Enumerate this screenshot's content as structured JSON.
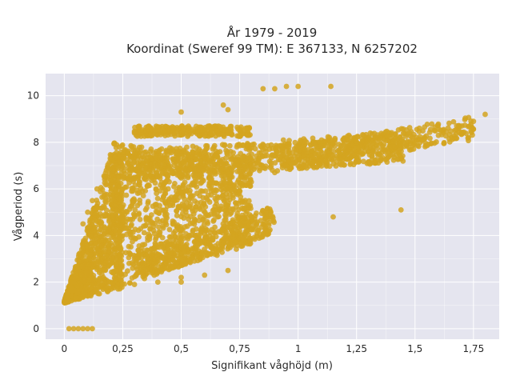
{
  "chart_data": {
    "type": "scatter",
    "title_line1": "År 1979 - 2019",
    "title_line2": "Koordinat (Sweref 99 TM): E 367133, N 6257202",
    "xlabel": "Signifikant våghöjd (m)",
    "ylabel": "Vågperiod (s)",
    "xlim": [
      -0.08,
      1.86
    ],
    "ylim": [
      -0.45,
      10.95
    ],
    "x_ticks": [
      0,
      0.25,
      0.5,
      0.75,
      1,
      1.25,
      1.5,
      1.75
    ],
    "x_tick_labels": [
      "0",
      "0,25",
      "0,5",
      "0,75",
      "1",
      "1,25",
      "1,5",
      "1,75"
    ],
    "y_ticks": [
      0,
      2,
      4,
      6,
      8,
      10
    ],
    "y_tick_labels": [
      "0",
      "2",
      "4",
      "6",
      "8",
      "10"
    ],
    "grid": true,
    "marker_color": "#d4a520",
    "background_color": "#e5e5ef",
    "gridline_color": "#ffffff",
    "series": [
      {
        "values": [
          [
            0.02,
            0
          ],
          [
            0.04,
            0
          ],
          [
            0.06,
            0
          ],
          [
            0.08,
            0
          ],
          [
            0.1,
            0
          ],
          [
            0.12,
            0
          ],
          [
            0.02,
            1.2
          ],
          [
            0.05,
            1.3
          ],
          [
            0.1,
            1.4
          ],
          [
            0.15,
            1.5
          ],
          [
            0.2,
            1.7
          ],
          [
            0.3,
            1.9
          ],
          [
            0.4,
            2.0
          ],
          [
            0.5,
            2.2
          ],
          [
            0.03,
            2.0
          ],
          [
            0.06,
            2.5
          ],
          [
            0.08,
            3.0
          ],
          [
            0.1,
            3.5
          ],
          [
            0.12,
            4.0
          ],
          [
            0.08,
            4.5
          ],
          [
            0.1,
            5.0
          ],
          [
            0.12,
            5.5
          ],
          [
            0.14,
            6.0
          ],
          [
            0.2,
            2.8
          ],
          [
            0.3,
            3.0
          ],
          [
            0.4,
            3.2
          ],
          [
            0.5,
            3.5
          ],
          [
            0.6,
            3.8
          ],
          [
            0.7,
            4.0
          ],
          [
            0.75,
            4.2
          ],
          [
            0.2,
            4.5
          ],
          [
            0.25,
            5.0
          ],
          [
            0.3,
            5.5
          ],
          [
            0.25,
            6.0
          ],
          [
            0.3,
            6.5
          ],
          [
            0.25,
            7.0
          ],
          [
            0.3,
            7.5
          ],
          [
            0.4,
            7.0
          ],
          [
            0.5,
            7.2
          ],
          [
            0.6,
            7.3
          ],
          [
            0.7,
            6.0
          ],
          [
            0.8,
            6.3
          ],
          [
            0.9,
            6.7
          ],
          [
            1.0,
            7.0
          ],
          [
            1.1,
            7.2
          ],
          [
            1.2,
            7.4
          ],
          [
            1.3,
            7.6
          ],
          [
            1.4,
            7.8
          ],
          [
            1.5,
            8.0
          ],
          [
            1.6,
            8.3
          ],
          [
            1.7,
            8.7
          ],
          [
            1.75,
            8.9
          ],
          [
            1.8,
            9.2
          ],
          [
            0.3,
            8.4
          ],
          [
            0.4,
            8.5
          ],
          [
            0.5,
            8.6
          ],
          [
            0.6,
            8.5
          ],
          [
            0.7,
            8.4
          ],
          [
            0.5,
            9.3
          ],
          [
            0.68,
            9.6
          ],
          [
            0.7,
            9.4
          ],
          [
            0.85,
            10.3
          ],
          [
            0.9,
            10.3
          ],
          [
            0.95,
            10.4
          ],
          [
            1.0,
            10.4
          ],
          [
            1.14,
            10.4
          ],
          [
            1.44,
            5.1
          ],
          [
            1.15,
            4.8
          ],
          [
            0.6,
            2.3
          ],
          [
            0.7,
            2.5
          ],
          [
            0.5,
            2.0
          ]
        ]
      }
    ]
  }
}
